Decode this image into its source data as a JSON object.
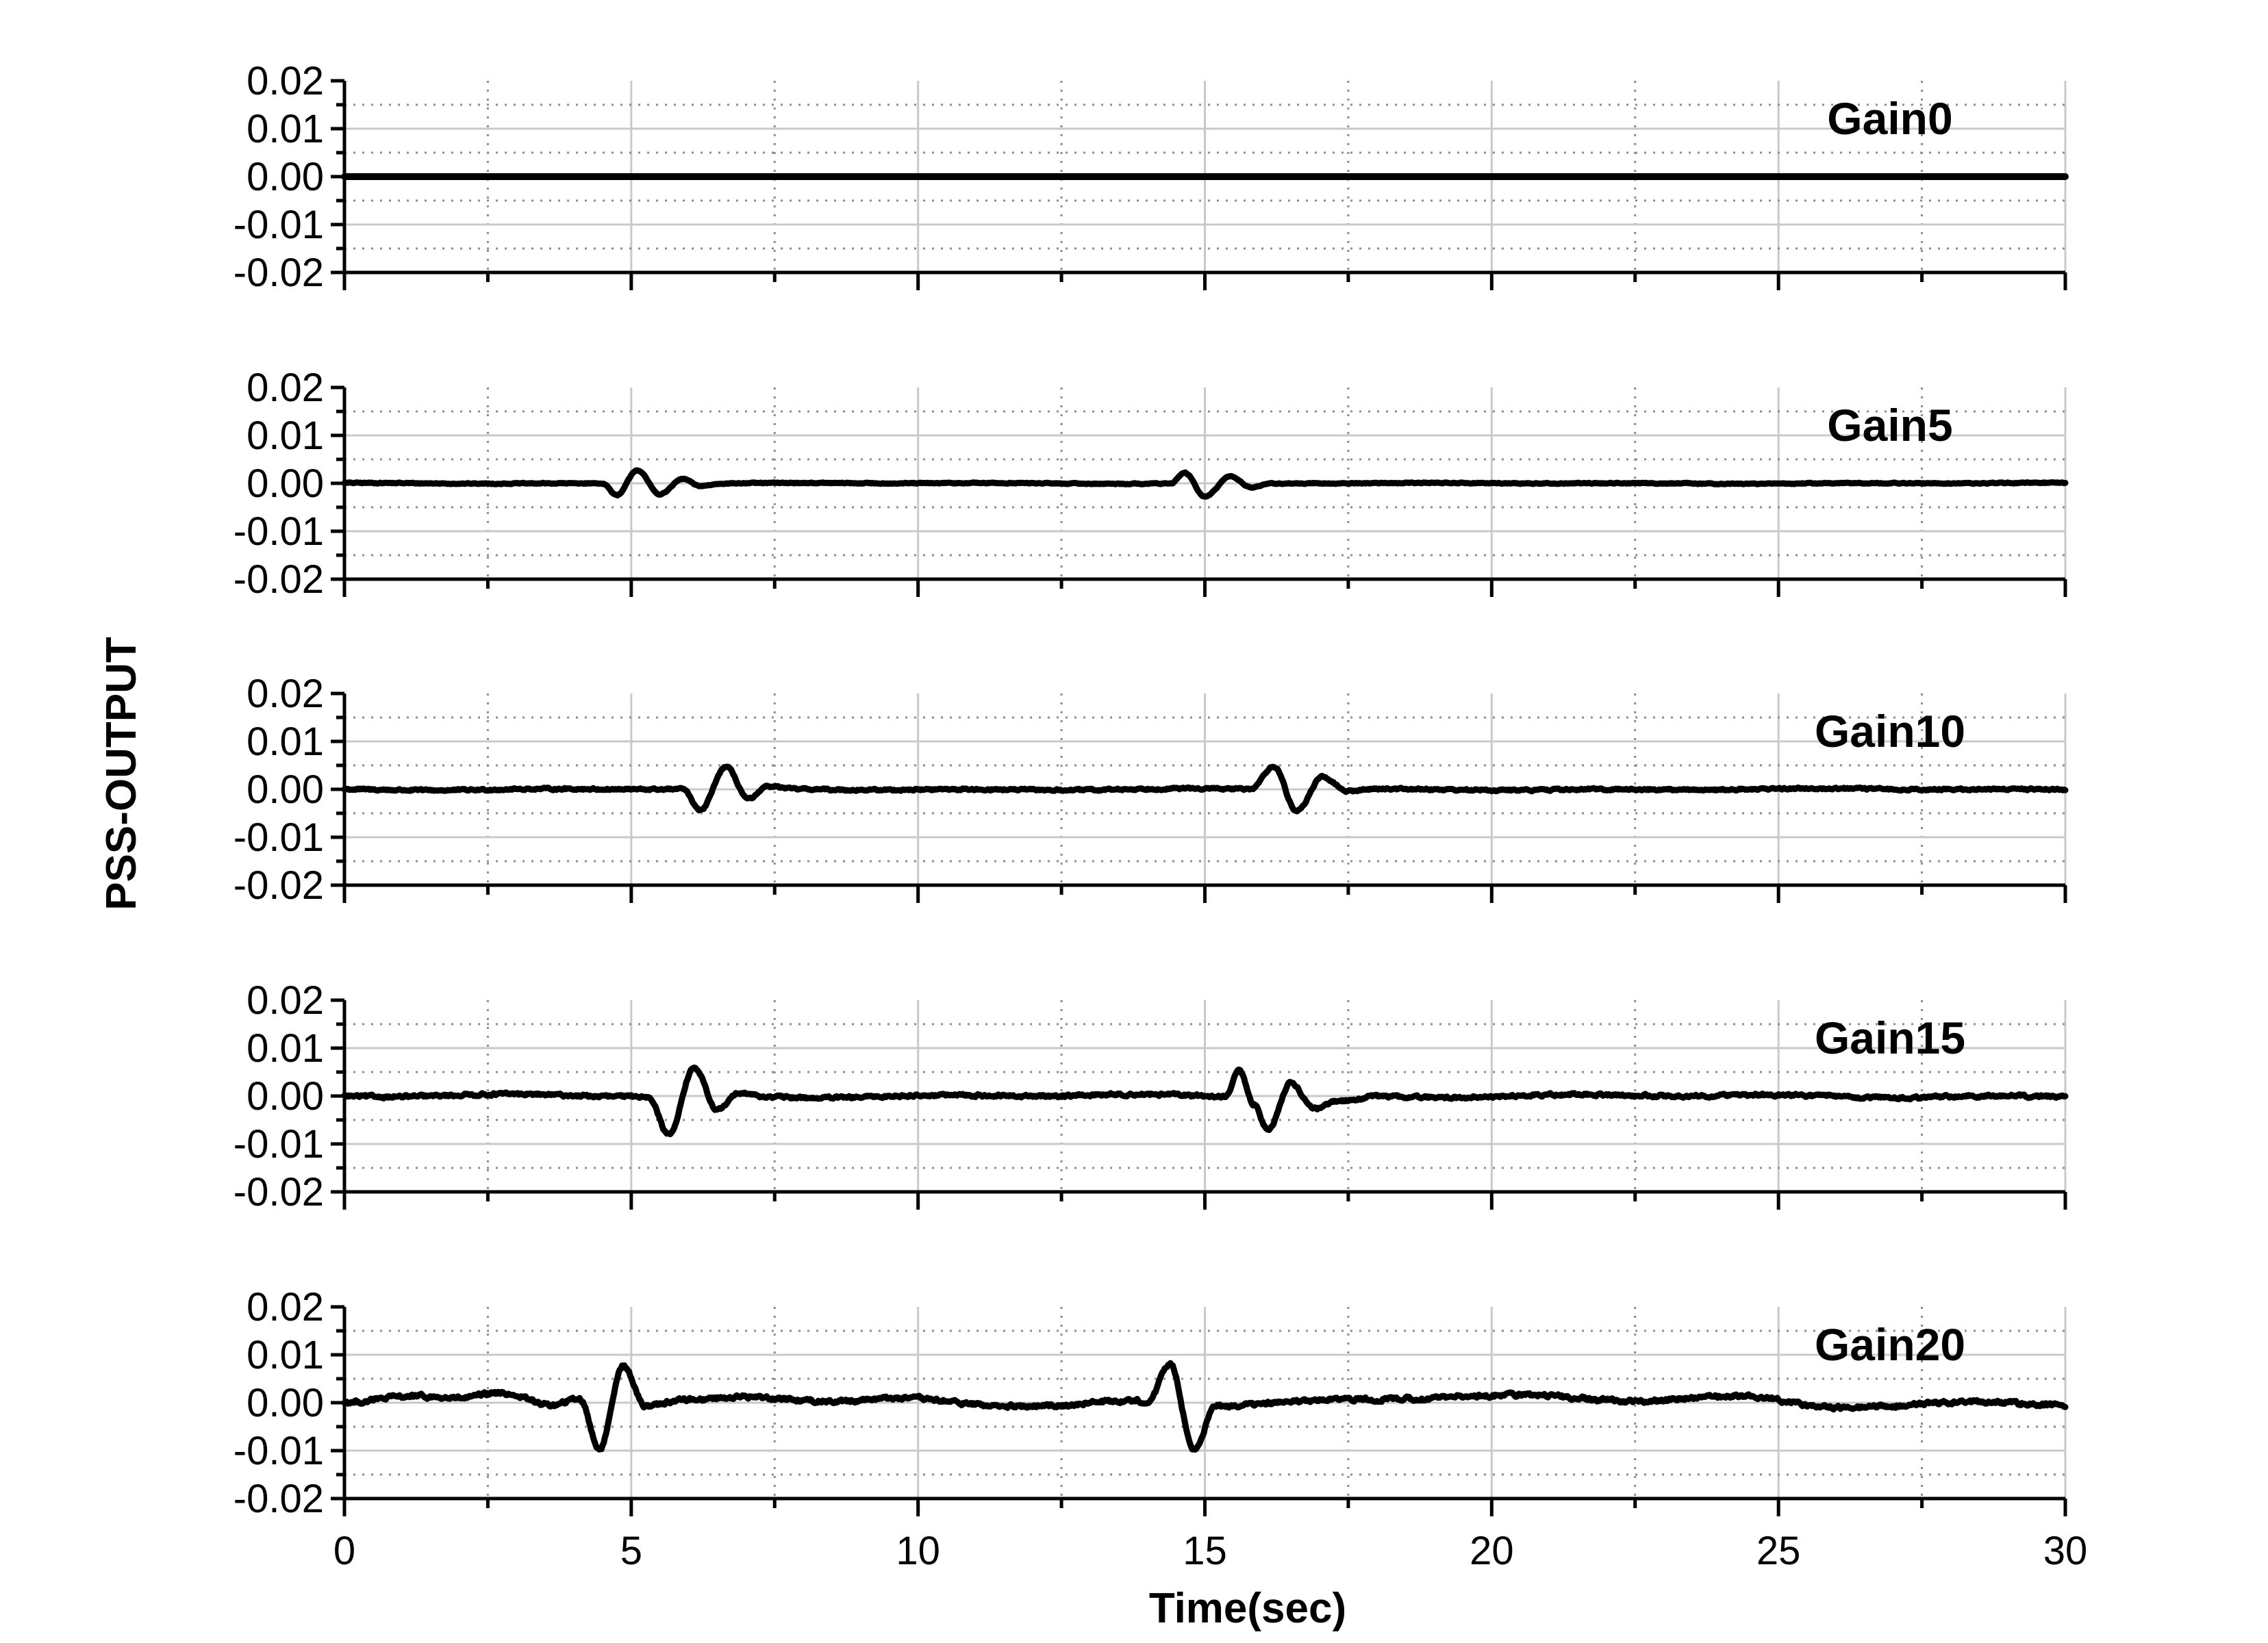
{
  "chart_data": {
    "type": "line",
    "layout": "stacked-panels",
    "ylabel": "PSS-OUTPUT",
    "xlabel": "Time(sec)",
    "xlim": [
      0,
      30
    ],
    "ylim": [
      -0.02,
      0.02
    ],
    "xticks": [
      "0",
      "5",
      "10",
      "15",
      "20",
      "25",
      "30"
    ],
    "yticks": [
      "0.02",
      "0.01",
      "0.00",
      "-0.01",
      "-0.02"
    ],
    "grid": true,
    "line_color": "#000000",
    "panels": [
      {
        "label": "Gain0",
        "noise": 0,
        "drift": 0,
        "points": [
          [
            0,
            0
          ],
          [
            30,
            0
          ]
        ]
      },
      {
        "label": "Gain5",
        "noise": 0.00018,
        "drift": 0.0001,
        "points": [
          [
            0,
            0
          ],
          [
            4.5,
            0
          ],
          [
            4.75,
            -0.0025
          ],
          [
            5.1,
            0.0028
          ],
          [
            5.5,
            -0.0022
          ],
          [
            5.9,
            0.001
          ],
          [
            6.2,
            -0.0005
          ],
          [
            6.6,
            0
          ],
          [
            14.4,
            0
          ],
          [
            14.65,
            0.0022
          ],
          [
            15,
            -0.0028
          ],
          [
            15.45,
            0.0015
          ],
          [
            15.8,
            -0.0008
          ],
          [
            16.2,
            0
          ],
          [
            30,
            0
          ]
        ]
      },
      {
        "label": "Gain10",
        "noise": 0.00035,
        "drift": 0.0002,
        "points": [
          [
            0,
            0
          ],
          [
            5.9,
            0
          ],
          [
            6.2,
            -0.0045
          ],
          [
            6.65,
            0.0045
          ],
          [
            7.05,
            -0.0022
          ],
          [
            7.4,
            0.0005
          ],
          [
            7.8,
            0
          ],
          [
            15.8,
            0
          ],
          [
            16.2,
            0.0048
          ],
          [
            16.6,
            -0.0045
          ],
          [
            17.05,
            0.0025
          ],
          [
            17.5,
            -0.0005
          ],
          [
            18,
            0
          ],
          [
            30,
            0
          ]
        ]
      },
      {
        "label": "Gain15",
        "noise": 0.0005,
        "drift": 0.0004,
        "points": [
          [
            0,
            0
          ],
          [
            5.3,
            0
          ],
          [
            5.65,
            -0.008
          ],
          [
            6.1,
            0.0058
          ],
          [
            6.5,
            -0.003
          ],
          [
            6.9,
            0.0008
          ],
          [
            7.3,
            0
          ],
          [
            15.35,
            0
          ],
          [
            15.6,
            0.0055
          ],
          [
            15.85,
            -0.0015
          ],
          [
            16.1,
            -0.0068
          ],
          [
            16.5,
            0.003
          ],
          [
            16.9,
            -0.0025
          ],
          [
            17.4,
            -0.001
          ],
          [
            18,
            0
          ],
          [
            30,
            0
          ]
        ]
      },
      {
        "label": "Gain20",
        "noise": 0.0007,
        "drift": 0.0012,
        "points": [
          [
            0,
            0
          ],
          [
            1,
            0.0012
          ],
          [
            2,
            0.0003
          ],
          [
            2.8,
            0.0018
          ],
          [
            3.6,
            0.0003
          ],
          [
            4.1,
            0.002
          ],
          [
            4.45,
            -0.0085
          ],
          [
            4.85,
            0.0085
          ],
          [
            5.25,
            -0.0003
          ],
          [
            6,
            0.0005
          ],
          [
            7.2,
            0.0015
          ],
          [
            9,
            -0.0002
          ],
          [
            12.5,
            -0.0005
          ],
          [
            14,
            0.0005
          ],
          [
            14.4,
            0.0088
          ],
          [
            14.8,
            -0.0085
          ],
          [
            15.2,
            0.0005
          ],
          [
            17,
            0
          ],
          [
            19,
            0.001
          ],
          [
            21,
            0.0005
          ],
          [
            24,
            0.0015
          ],
          [
            26,
            0
          ],
          [
            28,
            -0.0008
          ],
          [
            30,
            -0.0005
          ]
        ]
      }
    ]
  }
}
